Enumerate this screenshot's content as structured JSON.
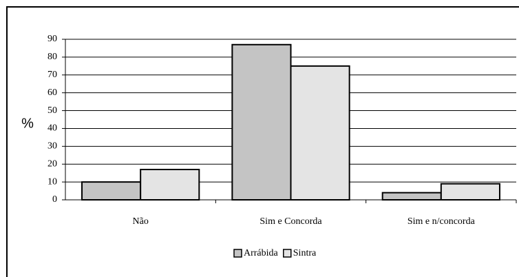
{
  "chart_data": {
    "type": "bar",
    "ylabel": "%",
    "categories": [
      "Não",
      "Sim e Concorda",
      "Sim e n/concorda"
    ],
    "series": [
      {
        "name": "Arrábida",
        "color": "#c4c4c4",
        "values": [
          10,
          87,
          4
        ]
      },
      {
        "name": "Sintra",
        "color": "#e4e4e4",
        "values": [
          17,
          75,
          9
        ]
      }
    ],
    "ylim": [
      0,
      90
    ],
    "yticks": [
      0,
      10,
      20,
      30,
      40,
      50,
      60,
      70,
      80,
      90
    ],
    "grid": true,
    "legend": "bottom"
  }
}
